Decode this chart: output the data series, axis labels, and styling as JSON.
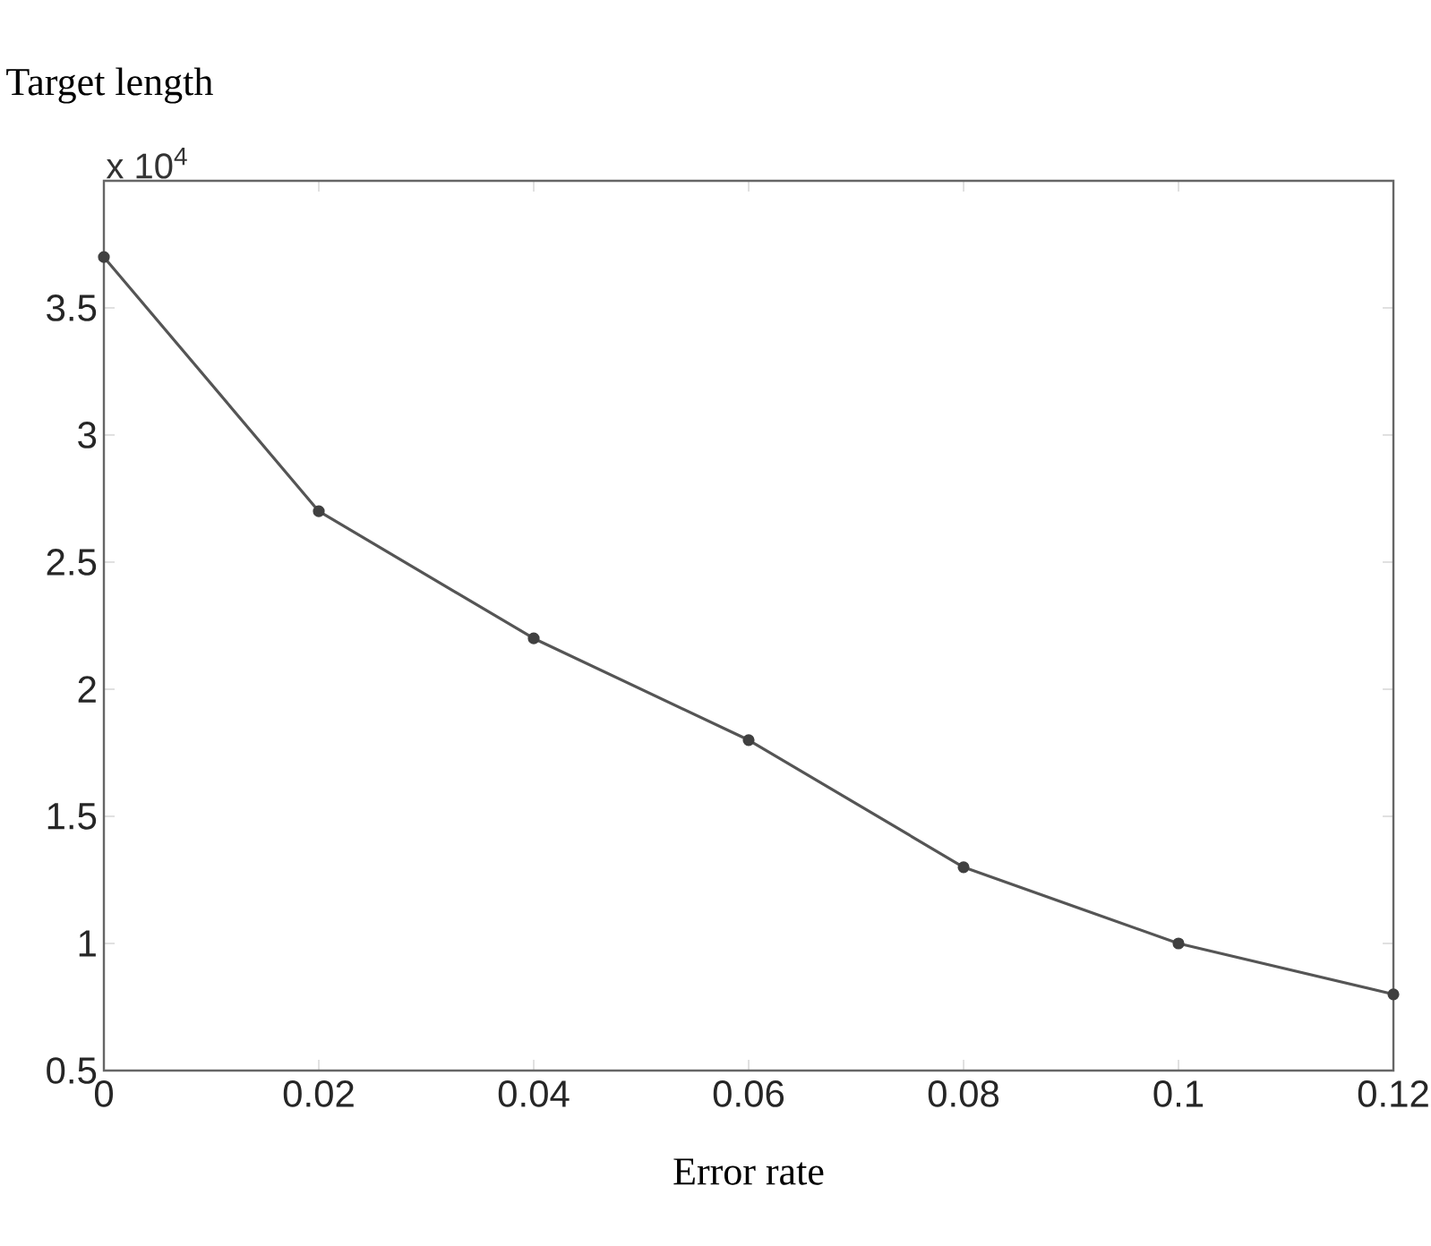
{
  "chart_data": {
    "type": "line",
    "ylabel": "Target length",
    "xlabel": "Error rate",
    "annotations": [
      "x 10$^{4}$"
    ],
    "x": [
      0,
      0.02,
      0.04,
      0.06,
      0.08,
      0.1,
      0.12
    ],
    "series": [
      {
        "color": "#555555",
        "values": [
          3.7,
          2.7,
          2.2,
          1.8,
          1.3,
          1.0,
          0.8
        ]
      }
    ],
    "xlim": [
      0,
      0.12
    ],
    "ylim": [
      0.5,
      4.0
    ],
    "xticks": [
      0,
      0.02,
      0.04,
      0.06,
      0.08,
      0.1,
      0.12
    ],
    "yticks": [
      0.5,
      1,
      1.5,
      2,
      2.5,
      3,
      3.5
    ],
    "grid": false,
    "marker": "circle",
    "line_style": "solid"
  }
}
